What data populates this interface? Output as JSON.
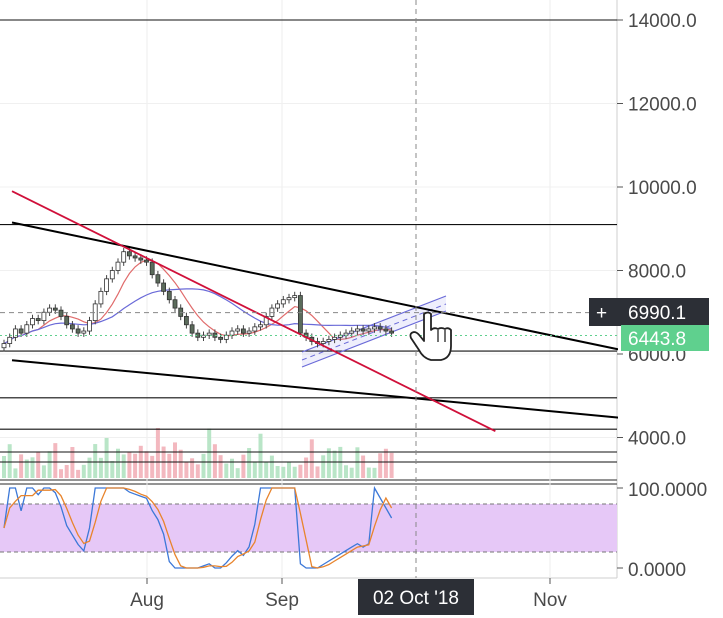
{
  "chart_data": {
    "type": "candlestick",
    "price_axis": {
      "ticks": [
        "14000.0",
        "12000.0",
        "10000.0",
        "8000.0",
        "6000.0",
        "4000.0"
      ],
      "tick_values": [
        14000,
        12000,
        10000,
        8000,
        6000,
        4000
      ],
      "range": [
        3200,
        14500
      ]
    },
    "time_axis": {
      "ticks": [
        "Aug",
        "Sep",
        "Nov"
      ],
      "crosshair_date": "02 Oct '18"
    },
    "crosshair_price": "6990.1",
    "last_price": "6443.8",
    "horizontal_levels": [
      14000,
      9100,
      6070,
      4950,
      4200
    ],
    "trendlines": [
      {
        "color": "#000000",
        "from": [
          "2018-07-01",
          9150
        ],
        "to": [
          "2018-11-20",
          6050
        ]
      },
      {
        "color": "#000000",
        "from": [
          "2018-07-01",
          5850
        ],
        "to": [
          "2018-11-20",
          4450
        ]
      },
      {
        "color": "#d0103a",
        "from": [
          "2018-07-01",
          9900
        ],
        "to": [
          "2018-10-20",
          4150
        ]
      }
    ],
    "candles": [
      6250,
      6400,
      6600,
      6500,
      6700,
      6850,
      6800,
      7000,
      7100,
      7050,
      6900,
      6700,
      6600,
      6500,
      6550,
      6800,
      7200,
      7500,
      7800,
      8000,
      8200,
      8450,
      8350,
      8300,
      8250,
      8200,
      7900,
      7700,
      7500,
      7300,
      7100,
      6900,
      6700,
      6500,
      6400,
      6450,
      6500,
      6400,
      6350,
      6450,
      6550,
      6600,
      6500,
      6550,
      6650,
      6700,
      6900,
      7100,
      7200,
      7300,
      7350,
      7400,
      6500,
      6400,
      6300,
      6250,
      6300,
      6350,
      6400,
      6450,
      6500,
      6550,
      6600,
      6550,
      6600,
      6650,
      6600,
      6550,
      6500
    ],
    "stochastic": {
      "upper": "100.0000",
      "lower": "0.0000",
      "band": [
        80,
        20
      ]
    }
  }
}
